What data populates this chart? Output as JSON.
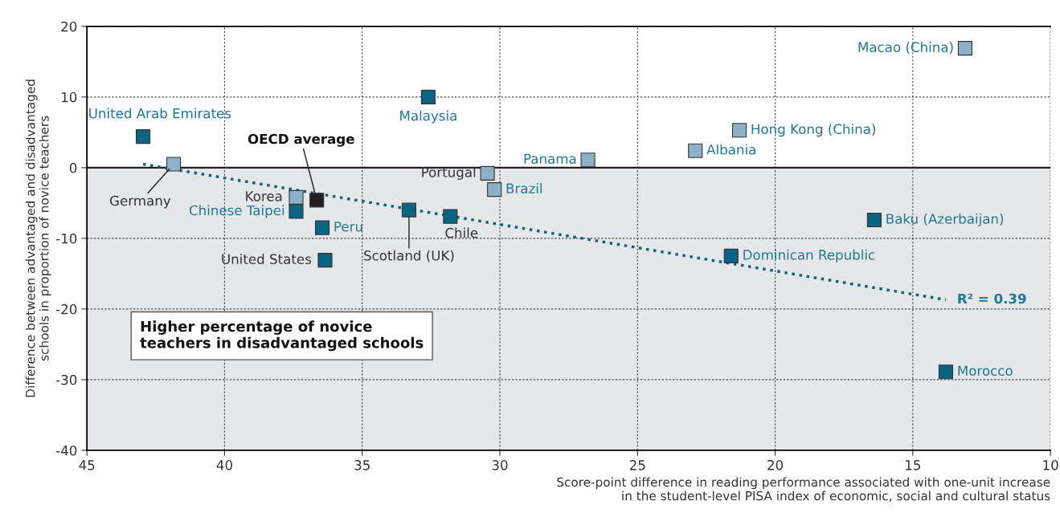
{
  "chart_data": {
    "type": "scatter",
    "xlabel": "Score-point difference in reading performance associated with one-unit increase\nin the student-level PISA index of economic, social and cultural status",
    "ylabel": "Difference between advantaged and disadvantaged\nschools in proportion of novice teachers",
    "xlim": [
      45,
      10
    ],
    "xticks": [
      45,
      40,
      35,
      30,
      25,
      20,
      15,
      10
    ],
    "ylim": [
      -40,
      20
    ],
    "yticks": [
      -40,
      -30,
      -20,
      -10,
      0,
      10,
      20
    ],
    "grid": true,
    "marker": "square",
    "bands": [
      {
        "axis": "y",
        "from": -40,
        "to": 0,
        "color": "#e6e7e9"
      }
    ],
    "ref_lines": [
      {
        "axis": "y",
        "value": 0,
        "color": "#231f20",
        "line_style": "solid"
      }
    ],
    "series": [
      {
        "color": "#0a6585",
        "x": [
          42.96,
          32.6,
          37.4,
          36.45,
          36.35,
          33.3,
          31.8,
          16.4,
          21.6,
          13.8
        ],
        "values": [
          4.4,
          10.0,
          -6.2,
          -8.5,
          -13.1,
          -6.0,
          -6.9,
          -7.4,
          -12.5,
          -28.9
        ]
      },
      {
        "color": "#8eb1ca",
        "x": [
          13.1,
          21.3,
          22.9,
          26.8,
          30.45,
          30.2,
          41.85,
          37.4
        ],
        "values": [
          16.9,
          5.3,
          2.4,
          1.1,
          -0.8,
          -3.1,
          0.5,
          -4.2
        ]
      },
      {
        "color": "#231f20",
        "x": [
          36.65
        ],
        "values": [
          -4.6
        ]
      },
      {
        "type": "line",
        "color": "#0a6585",
        "marker": "none",
        "line_style": "dotted",
        "x": [
          42.96,
          13.8
        ],
        "values": [
          0.5,
          -18.7
        ]
      }
    ],
    "annotations": [
      {
        "text": "United Arab Emirates",
        "x": 42.96,
        "y": 4.4
      },
      {
        "text": "Malaysia",
        "x": 32.6,
        "y": 10.0
      },
      {
        "text": "Chinese Taipei",
        "x": 37.4,
        "y": -6.2
      },
      {
        "text": "Peru",
        "x": 36.45,
        "y": -8.5
      },
      {
        "text": "United States",
        "x": 36.35,
        "y": -13.1
      },
      {
        "text": "Scotland (UK)",
        "x": 33.3,
        "y": -6.0
      },
      {
        "text": "Chile",
        "x": 31.8,
        "y": -6.9
      },
      {
        "text": "Baku (Azerbaijan)",
        "x": 16.4,
        "y": -7.4
      },
      {
        "text": "Dominican Republic",
        "x": 21.6,
        "y": -12.5
      },
      {
        "text": "Morocco",
        "x": 13.8,
        "y": -28.9
      },
      {
        "text": "Macao (China)",
        "x": 13.1,
        "y": 16.9
      },
      {
        "text": "Hong Kong (China)",
        "x": 21.3,
        "y": 5.3
      },
      {
        "text": "Albania",
        "x": 22.9,
        "y": 2.4
      },
      {
        "text": "Panama",
        "x": 26.8,
        "y": 1.1
      },
      {
        "text": "Portugal",
        "x": 30.45,
        "y": -0.8
      },
      {
        "text": "Brazil",
        "x": 30.2,
        "y": -3.1
      },
      {
        "text": "Germany",
        "x": 41.85,
        "y": 0.5
      },
      {
        "text": "Korea",
        "x": 37.4,
        "y": -4.2
      },
      {
        "text": "OECD average",
        "x": 36.65,
        "y": -4.6
      },
      {
        "text": "R² = 0.39",
        "x": 13.8,
        "y": -18.7
      },
      "Higher percentage of novice\nteachers in disadvantaged schools"
    ]
  }
}
